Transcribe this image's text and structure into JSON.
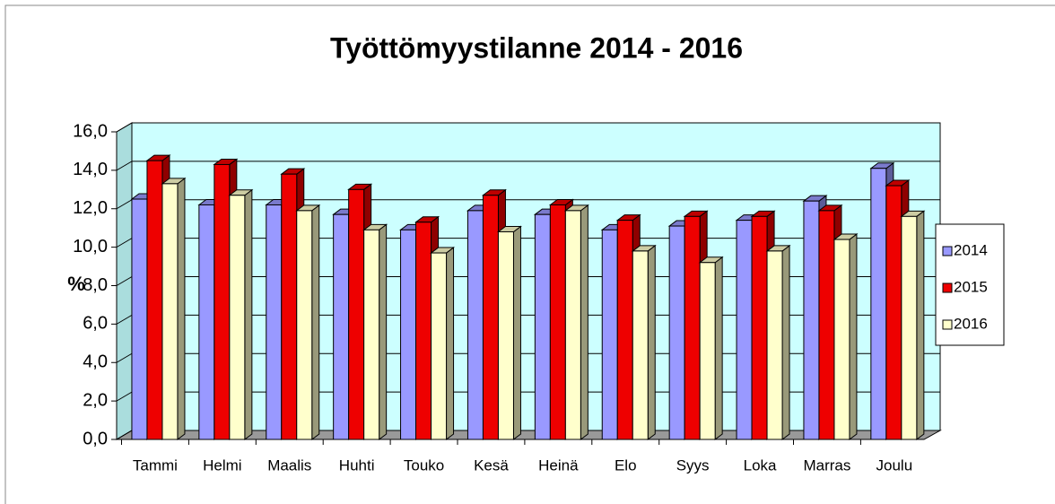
{
  "chart_data": {
    "type": "bar3d",
    "title": "Työttömyystilanne 2014 - 2016",
    "y_label": "%",
    "categories": [
      "Tammi",
      "Helmi",
      "Maalis",
      "Huhti",
      "Touko",
      "Kesä",
      "Heinä",
      "Elo",
      "Syys",
      "Loka",
      "Marras",
      "Joulu"
    ],
    "series": [
      {
        "name": "2014",
        "color": "#9999ff",
        "values": [
          12.5,
          12.2,
          12.2,
          11.7,
          10.9,
          11.9,
          11.7,
          10.9,
          11.1,
          11.4,
          12.4,
          14.1
        ]
      },
      {
        "name": "2015",
        "color": "#ee0000",
        "values": [
          14.5,
          14.3,
          13.8,
          13.0,
          11.3,
          12.7,
          12.2,
          11.4,
          11.6,
          11.6,
          11.9,
          13.2
        ]
      },
      {
        "name": "2016",
        "color": "#ffffcc",
        "values": [
          13.3,
          12.7,
          11.9,
          10.9,
          9.7,
          10.8,
          11.9,
          9.8,
          9.2,
          9.8,
          10.4,
          11.6
        ]
      }
    ],
    "ylim": [
      0,
      16
    ],
    "yticks": [
      {
        "value": 0,
        "label": "0,0"
      },
      {
        "value": 2,
        "label": "2,0"
      },
      {
        "value": 4,
        "label": "4,0"
      },
      {
        "value": 6,
        "label": "6,0"
      },
      {
        "value": 8,
        "label": "8,0"
      },
      {
        "value": 10,
        "label": "10,0"
      },
      {
        "value": 12,
        "label": "12,0"
      },
      {
        "value": 14,
        "label": "14,0"
      },
      {
        "value": 16,
        "label": "16,0"
      }
    ],
    "grid": true,
    "legend": "right",
    "wall_color": "#ccffff",
    "floor_color": "#999999"
  }
}
